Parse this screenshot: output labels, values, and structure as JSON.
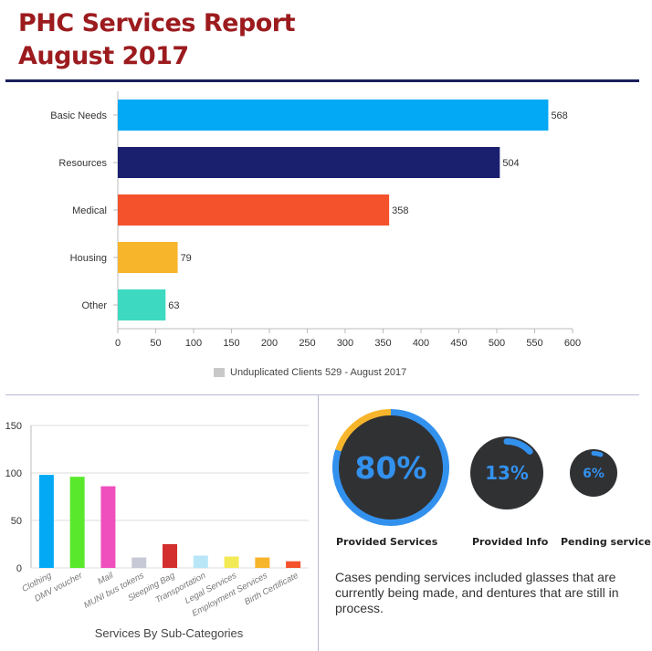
{
  "header": {
    "title_line1": "PHC Services Report",
    "title_line2": "August 2017"
  },
  "chart_data": [
    {
      "type": "bar",
      "orientation": "horizontal",
      "categories": [
        "Basic Needs",
        "Resources",
        "Medical",
        "Housing",
        "Other"
      ],
      "values": [
        568,
        504,
        358,
        79,
        63
      ],
      "colors": [
        "#03a9f4",
        "#1a1f6e",
        "#f4522d",
        "#f7b52c",
        "#3dd9c1"
      ],
      "xlim": [
        0,
        600
      ],
      "xticks": [
        0,
        50,
        100,
        150,
        200,
        250,
        300,
        350,
        400,
        450,
        500,
        550,
        600
      ],
      "legend": "Unduplicated Clients 529 - August 2017",
      "legend_color": "#c8c8c8",
      "legend_position": "bottom"
    },
    {
      "type": "bar",
      "orientation": "vertical",
      "title": "Services By Sub-Categories",
      "title_position": "bottom",
      "categories": [
        "Clothing",
        "DMV voucher",
        "Mail",
        "MUNI bus tokens",
        "Sleeping Bag",
        "Transportation",
        "Legal Services",
        "Employment Services",
        "Birth Certificate"
      ],
      "values": [
        98,
        96,
        86,
        11,
        25,
        13,
        12,
        11,
        7
      ],
      "colors": [
        "#03a9f4",
        "#5ae82d",
        "#ee4fbd",
        "#c7c9d6",
        "#d32f2f",
        "#b9e6f7",
        "#f2ea55",
        "#f7b52c",
        "#f4522d"
      ],
      "ylim": [
        0,
        150
      ],
      "yticks": [
        0,
        50,
        100,
        150
      ],
      "grid": "horizontal"
    }
  ],
  "gauges": [
    {
      "value_text": "80%",
      "value": 80,
      "label": "Provided Services"
    },
    {
      "value_text": "13%",
      "value": 13,
      "label": "Provided Info"
    },
    {
      "value_text": "6%",
      "value": 6,
      "label": "Pending service"
    }
  ],
  "gauge_colors": {
    "progress": "#3391ee",
    "remainder_outer": "#f7b52c",
    "disc": "#303133",
    "text": "#3391ee"
  },
  "note": "Cases pending services included glasses that are currently being made, and dentures that are still in process."
}
